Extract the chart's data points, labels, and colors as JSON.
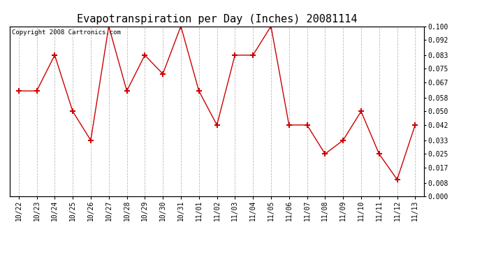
{
  "title": "Evapotranspiration per Day (Inches) 20081114",
  "copyright": "Copyright 2008 Cartronics.com",
  "x_labels": [
    "10/22",
    "10/23",
    "10/24",
    "10/25",
    "10/26",
    "10/27",
    "10/28",
    "10/29",
    "10/30",
    "10/31",
    "11/01",
    "11/02",
    "11/03",
    "11/04",
    "11/05",
    "11/06",
    "11/07",
    "11/08",
    "11/09",
    "11/10",
    "11/11",
    "11/12",
    "11/13"
  ],
  "y_values": [
    0.062,
    0.062,
    0.083,
    0.05,
    0.033,
    0.1,
    0.062,
    0.083,
    0.072,
    0.1,
    0.062,
    0.042,
    0.083,
    0.083,
    0.1,
    0.042,
    0.042,
    0.025,
    0.033,
    0.05,
    0.025,
    0.01,
    0.042
  ],
  "y_ticks": [
    0.0,
    0.008,
    0.017,
    0.025,
    0.033,
    0.042,
    0.05,
    0.058,
    0.067,
    0.075,
    0.083,
    0.092,
    0.1
  ],
  "line_color": "#cc0000",
  "marker": "+",
  "marker_size": 6,
  "marker_linewidth": 1.5,
  "line_width": 1.0,
  "background_color": "#ffffff",
  "grid_color": "#bbbbbb",
  "title_fontsize": 11,
  "copyright_fontsize": 6.5,
  "tick_fontsize": 7,
  "ylim": [
    0.0,
    0.1
  ],
  "figwidth": 6.9,
  "figheight": 3.75,
  "dpi": 100
}
